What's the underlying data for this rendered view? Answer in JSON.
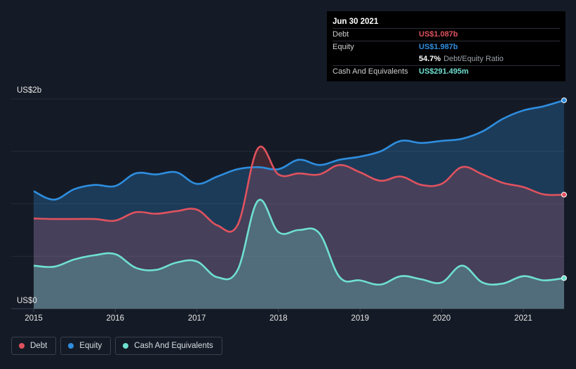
{
  "tooltip": {
    "date": "Jun 30 2021",
    "debt_label": "Debt",
    "debt_value": "US$1.087b",
    "equity_label": "Equity",
    "equity_value": "US$1.987b",
    "ratio_value": "54.7%",
    "ratio_label": "Debt/Equity Ratio",
    "cash_label": "Cash And Equivalents",
    "cash_value": "US$291.495m"
  },
  "legend": [
    {
      "label": "Debt",
      "color": "#e0525e"
    },
    {
      "label": "Equity",
      "color": "#2e8ee0"
    },
    {
      "label": "Cash And Equivalents",
      "color": "#6fe0d0"
    }
  ],
  "colors": {
    "background": "#151b26",
    "debt": "#e0525e",
    "equity": "#2e8ee0",
    "cash": "#6fe0d0",
    "grid": "#3a414d"
  },
  "chart_data": {
    "type": "area",
    "ylabel_top": "US$2b",
    "ylabel_bottom": "US$0",
    "ylim": [
      0,
      2.0
    ],
    "xlim": [
      2015.0,
      2021.5
    ],
    "x_ticks": [
      "2015",
      "2016",
      "2017",
      "2018",
      "2019",
      "2020",
      "2021"
    ],
    "grid": true,
    "legend_position": "bottom-left",
    "series": [
      {
        "name": "Equity",
        "x": [
          2015.0,
          2015.25,
          2015.5,
          2015.75,
          2016.0,
          2016.25,
          2016.5,
          2016.75,
          2017.0,
          2017.25,
          2017.5,
          2017.75,
          2018.0,
          2018.25,
          2018.5,
          2018.75,
          2019.0,
          2019.25,
          2019.5,
          2019.75,
          2020.0,
          2020.25,
          2020.5,
          2020.75,
          2021.0,
          2021.25,
          2021.5
        ],
        "values": [
          1.12,
          1.04,
          1.14,
          1.18,
          1.17,
          1.29,
          1.28,
          1.3,
          1.19,
          1.26,
          1.33,
          1.35,
          1.33,
          1.42,
          1.37,
          1.42,
          1.45,
          1.5,
          1.6,
          1.58,
          1.6,
          1.62,
          1.69,
          1.81,
          1.89,
          1.93,
          1.987
        ]
      },
      {
        "name": "Debt",
        "x": [
          2015.0,
          2015.25,
          2015.5,
          2015.75,
          2016.0,
          2016.25,
          2016.5,
          2016.75,
          2017.0,
          2017.25,
          2017.5,
          2017.75,
          2018.0,
          2018.25,
          2018.5,
          2018.75,
          2019.0,
          2019.25,
          2019.5,
          2019.75,
          2020.0,
          2020.25,
          2020.5,
          2020.75,
          2021.0,
          2021.25,
          2021.5
        ],
        "values": [
          0.86,
          0.855,
          0.855,
          0.855,
          0.84,
          0.92,
          0.905,
          0.93,
          0.945,
          0.795,
          0.8,
          1.53,
          1.28,
          1.29,
          1.28,
          1.37,
          1.3,
          1.22,
          1.26,
          1.18,
          1.19,
          1.35,
          1.28,
          1.2,
          1.16,
          1.09,
          1.087
        ]
      },
      {
        "name": "Cash And Equivalents",
        "x": [
          2015.0,
          2015.25,
          2015.5,
          2015.75,
          2016.0,
          2016.25,
          2016.5,
          2016.75,
          2017.0,
          2017.25,
          2017.5,
          2017.75,
          2018.0,
          2018.25,
          2018.5,
          2018.75,
          2019.0,
          2019.25,
          2019.5,
          2019.75,
          2020.0,
          2020.25,
          2020.5,
          2020.75,
          2021.0,
          2021.25,
          2021.5
        ],
        "values": [
          0.41,
          0.4,
          0.47,
          0.51,
          0.52,
          0.39,
          0.37,
          0.44,
          0.45,
          0.3,
          0.37,
          1.03,
          0.73,
          0.75,
          0.72,
          0.3,
          0.27,
          0.23,
          0.31,
          0.28,
          0.25,
          0.41,
          0.25,
          0.24,
          0.31,
          0.27,
          0.2915
        ]
      }
    ]
  }
}
